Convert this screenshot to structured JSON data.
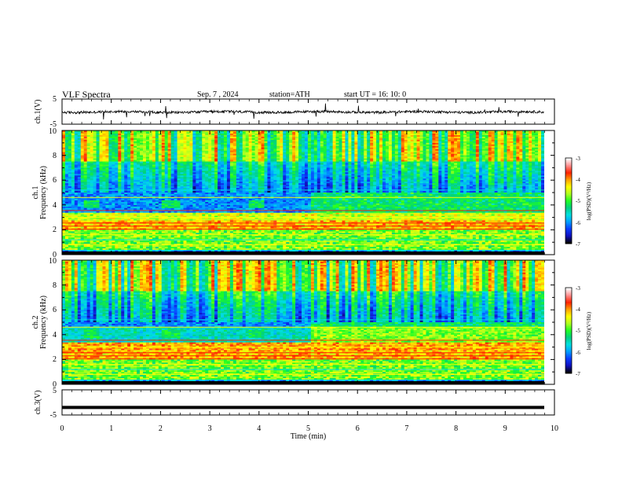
{
  "header": {
    "title": "VLF  Spectra",
    "date": "Sep. 7   , 2024",
    "station": "station=ATH",
    "start": "start  UT  =    16: 10: 0"
  },
  "colors": {
    "colormap": [
      "#000000",
      "#1010c0",
      "#0a3cff",
      "#00a0ff",
      "#00e0e0",
      "#00d080",
      "#20ff20",
      "#b0ff20",
      "#ffff00",
      "#ffa000",
      "#ff2000",
      "#ff9090",
      "#ffffff"
    ]
  },
  "chart_data": [
    {
      "type": "line",
      "ylabel": "ch.1(V)",
      "ylim": [
        -5,
        5
      ],
      "yticks": [
        "5",
        "-5"
      ],
      "xlim": [
        0,
        10
      ],
      "series_description_value": "noisy waveform around 0 V, amplitude about 1 V"
    },
    {
      "type": "heatmap",
      "ylabel": "ch.1",
      "ylabel2": "Frequency  (kHz)",
      "ylim": [
        0,
        10
      ],
      "yticks": [
        "0",
        "2",
        "4",
        "6",
        "8",
        "10"
      ],
      "xlim": [
        0,
        10
      ],
      "colorbar": {
        "label": "log(PSD)(V²/Hz)",
        "ticks": [
          "-3",
          "-4",
          "-5",
          "-6",
          "-7"
        ],
        "range": [
          -7,
          -3
        ]
      }
    },
    {
      "type": "heatmap",
      "ylabel": "ch.2",
      "ylabel2": "Frequency  (kHz)",
      "ylim": [
        0,
        10
      ],
      "yticks": [
        "0",
        "2",
        "4",
        "6",
        "8",
        "10"
      ],
      "xlim": [
        0,
        10
      ],
      "colorbar": {
        "label": "log(PSD)(V²/Hz)",
        "ticks": [
          "-3",
          "-4",
          "-5",
          "-6",
          "-7"
        ],
        "range": [
          -7,
          -3
        ]
      }
    },
    {
      "type": "line",
      "ylabel": "ch.3(V)",
      "ylim": [
        -5,
        5
      ],
      "yticks": [
        "5",
        "-5"
      ],
      "xlim": [
        0,
        10
      ],
      "xlabel": "Time  (min)",
      "xticks": [
        "0",
        "1",
        "2",
        "3",
        "4",
        "5",
        "6",
        "7",
        "8",
        "9",
        "10"
      ],
      "constant_value": -2
    }
  ]
}
